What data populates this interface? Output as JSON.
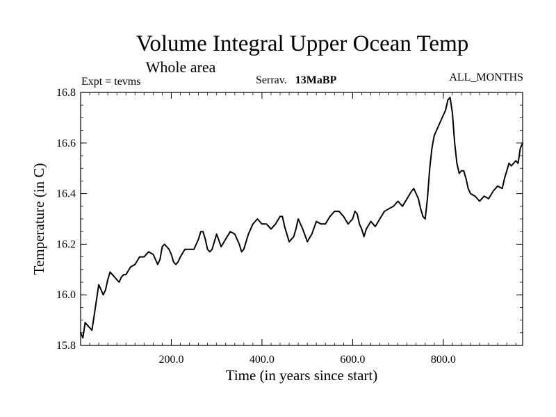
{
  "chart_data": {
    "type": "line",
    "title": "Volume Integral Upper Ocean Temp",
    "subtitle": "Whole area",
    "annotations": {
      "left": "Expt = tevms",
      "center_prefix": "Serrav.",
      "center_bold": "13MaBP",
      "right": "ALL_MONTHS"
    },
    "xlabel": "Time (in years since start)",
    "ylabel": "Temperature (in C)",
    "xlim": [
      0,
      975
    ],
    "ylim": [
      15.8,
      16.8
    ],
    "x_ticks": [
      200,
      400,
      600,
      800
    ],
    "x_tick_labels": [
      "200.0",
      "400.0",
      "600.0",
      "800.0"
    ],
    "y_ticks": [
      15.8,
      16.0,
      16.2,
      16.4,
      16.6,
      16.8
    ],
    "y_tick_labels": [
      "15.8",
      "16.0",
      "16.2",
      "16.4",
      "16.6",
      "16.8"
    ],
    "x_minor_step": 20,
    "y_minor_step": 0.05,
    "grid": false,
    "line_color": "#000000",
    "series": [
      {
        "name": "Temperature",
        "x": [
          0,
          5,
          10,
          15,
          20,
          25,
          30,
          35,
          40,
          45,
          50,
          55,
          60,
          65,
          70,
          75,
          80,
          85,
          90,
          95,
          100,
          110,
          120,
          130,
          140,
          150,
          160,
          170,
          175,
          180,
          185,
          190,
          195,
          200,
          205,
          210,
          215,
          220,
          230,
          240,
          250,
          260,
          265,
          270,
          275,
          280,
          285,
          290,
          295,
          300,
          310,
          320,
          330,
          340,
          350,
          355,
          360,
          370,
          380,
          390,
          400,
          410,
          420,
          430,
          440,
          445,
          450,
          460,
          470,
          475,
          480,
          490,
          500,
          510,
          520,
          530,
          540,
          550,
          560,
          570,
          580,
          590,
          600,
          605,
          610,
          615,
          620,
          625,
          630,
          640,
          650,
          660,
          670,
          680,
          690,
          700,
          710,
          720,
          730,
          735,
          740,
          745,
          750,
          755,
          760,
          765,
          770,
          775,
          780,
          785,
          790,
          795,
          800,
          805,
          810,
          815,
          820,
          825,
          830,
          835,
          840,
          845,
          850,
          855,
          860,
          870,
          880,
          890,
          900,
          910,
          920,
          930,
          935,
          940,
          945,
          950,
          955,
          960,
          965,
          970,
          975
        ],
        "values": [
          15.85,
          15.83,
          15.89,
          15.88,
          15.87,
          15.86,
          15.92,
          15.98,
          16.04,
          16.02,
          16.0,
          16.02,
          16.06,
          16.09,
          16.08,
          16.07,
          16.06,
          16.05,
          16.07,
          16.08,
          16.08,
          16.11,
          16.12,
          16.15,
          16.15,
          16.17,
          16.16,
          16.12,
          16.14,
          16.19,
          16.2,
          16.19,
          16.18,
          16.16,
          16.13,
          16.12,
          16.13,
          16.15,
          16.18,
          16.18,
          16.18,
          16.22,
          16.25,
          16.25,
          16.22,
          16.18,
          16.17,
          16.18,
          16.21,
          16.24,
          16.19,
          16.22,
          16.25,
          16.24,
          16.2,
          16.17,
          16.18,
          16.24,
          16.28,
          16.3,
          16.28,
          16.28,
          16.26,
          16.28,
          16.31,
          16.31,
          16.27,
          16.21,
          16.23,
          16.26,
          16.3,
          16.26,
          16.21,
          16.24,
          16.29,
          16.28,
          16.28,
          16.31,
          16.33,
          16.33,
          16.31,
          16.28,
          16.3,
          16.33,
          16.32,
          16.28,
          16.26,
          16.23,
          16.26,
          16.29,
          16.27,
          16.3,
          16.33,
          16.34,
          16.35,
          16.37,
          16.35,
          16.38,
          16.41,
          16.42,
          16.4,
          16.38,
          16.34,
          16.31,
          16.3,
          16.38,
          16.5,
          16.58,
          16.63,
          16.65,
          16.67,
          16.69,
          16.71,
          16.73,
          16.77,
          16.78,
          16.72,
          16.6,
          16.52,
          16.48,
          16.49,
          16.49,
          16.46,
          16.42,
          16.4,
          16.39,
          16.37,
          16.39,
          16.38,
          16.41,
          16.43,
          16.42,
          16.46,
          16.49,
          16.52,
          16.51,
          16.52,
          16.53,
          16.52,
          16.58,
          16.6
        ]
      }
    ]
  }
}
